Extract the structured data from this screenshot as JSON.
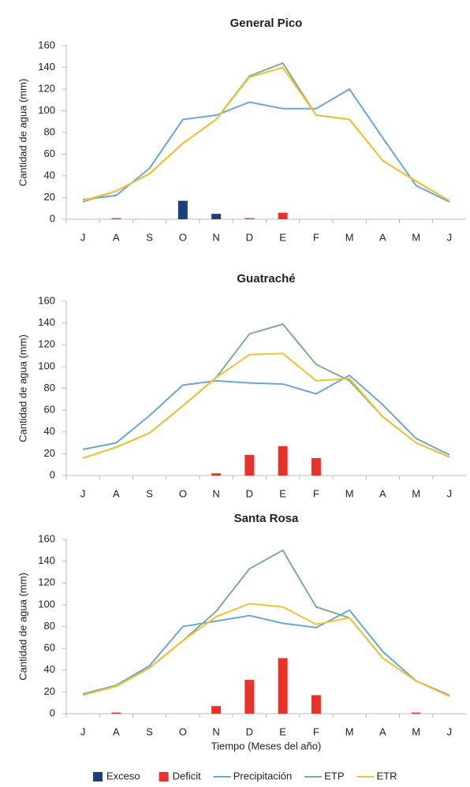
{
  "chart_data": [
    {
      "type": "combo",
      "title": "General Pico",
      "y_label": "Cantidad de agua (mm)",
      "categories": [
        "J",
        "A",
        "S",
        "O",
        "N",
        "D",
        "E",
        "F",
        "M",
        "A",
        "M",
        "J"
      ],
      "ylim": [
        0,
        160
      ],
      "yticks": [
        0,
        20,
        40,
        60,
        80,
        100,
        120,
        140,
        160
      ],
      "grid": false,
      "series": [
        {
          "kind": "bar",
          "color": "#1f3f7a",
          "values": [
            0,
            0,
            0,
            17,
            5,
            0,
            0,
            0,
            0,
            0,
            0,
            0
          ]
        },
        {
          "kind": "bar",
          "color": "#e8322a",
          "values": [
            0,
            1,
            0,
            0,
            0,
            1,
            6,
            0,
            0,
            0,
            0,
            0
          ]
        },
        {
          "kind": "line",
          "color": "#6aa6d8",
          "values": [
            18,
            22,
            47,
            92,
            96,
            108,
            102,
            102,
            120,
            75,
            31,
            16
          ]
        },
        {
          "kind": "line",
          "color": "#7fae8c",
          "values": [
            16,
            26,
            42,
            70,
            92,
            132,
            144,
            96,
            92,
            54,
            35,
            17
          ]
        },
        {
          "kind": "line",
          "color": "#f2c230",
          "values": [
            17,
            26,
            42,
            70,
            92,
            131,
            140,
            96,
            92,
            54,
            35,
            17
          ]
        }
      ]
    },
    {
      "type": "combo",
      "title": "Guatraché",
      "y_label": "Cantidad de agua (mm)",
      "categories": [
        "J",
        "A",
        "S",
        "O",
        "N",
        "D",
        "E",
        "F",
        "M",
        "A",
        "M",
        "J"
      ],
      "ylim": [
        0,
        160
      ],
      "yticks": [
        0,
        20,
        40,
        60,
        80,
        100,
        120,
        140,
        160
      ],
      "grid": false,
      "series": [
        {
          "kind": "bar",
          "color": "#1f3f7a",
          "values": [
            0,
            0,
            0,
            0,
            0,
            0,
            0,
            0,
            0,
            0,
            0,
            0
          ]
        },
        {
          "kind": "bar",
          "color": "#e8322a",
          "values": [
            0,
            0,
            0,
            0,
            2,
            19,
            27,
            16,
            0,
            0,
            0,
            0
          ]
        },
        {
          "kind": "line",
          "color": "#6aa6d8",
          "values": [
            24,
            30,
            55,
            83,
            87,
            85,
            84,
            75,
            92,
            65,
            34,
            19
          ]
        },
        {
          "kind": "line",
          "color": "#7fae8c",
          "values": [
            16,
            26,
            39,
            64,
            90,
            130,
            139,
            102,
            87,
            54,
            30,
            17
          ]
        },
        {
          "kind": "line",
          "color": "#f2c230",
          "values": [
            16,
            26,
            39,
            64,
            90,
            111,
            112,
            87,
            89,
            54,
            30,
            17
          ]
        }
      ]
    },
    {
      "type": "combo",
      "title": "Santa Rosa",
      "y_label": "Cantidad de agua (mm)",
      "x_label": "Tiempo (Meses del año)",
      "categories": [
        "J",
        "A",
        "S",
        "O",
        "N",
        "D",
        "E",
        "F",
        "M",
        "A",
        "M",
        "J"
      ],
      "ylim": [
        0,
        160
      ],
      "yticks": [
        0,
        20,
        40,
        60,
        80,
        100,
        120,
        140,
        160
      ],
      "grid": false,
      "legend": "bottom",
      "series": [
        {
          "kind": "bar",
          "name": "Exceso",
          "color": "#1f3f7a",
          "values": [
            0,
            0,
            0,
            0,
            0,
            0,
            0,
            0,
            0,
            0,
            0,
            0
          ]
        },
        {
          "kind": "bar",
          "name": "Deficit",
          "color": "#e8322a",
          "values": [
            0,
            1,
            0,
            0,
            7,
            31,
            51,
            17,
            0,
            0,
            1,
            0
          ]
        },
        {
          "kind": "line",
          "name": "Precipitación",
          "color": "#6aa6d8",
          "values": [
            18,
            26,
            44,
            80,
            85,
            90,
            83,
            79,
            95,
            57,
            30,
            17
          ]
        },
        {
          "kind": "line",
          "name": "ETP",
          "color": "#7fae8c",
          "values": [
            17,
            26,
            42,
            67,
            94,
            133,
            150,
            98,
            88,
            51,
            30,
            16
          ]
        },
        {
          "kind": "line",
          "name": "ETR",
          "color": "#f2c230",
          "values": [
            17,
            25,
            42,
            67,
            89,
            101,
            98,
            82,
            88,
            51,
            30,
            16
          ]
        }
      ]
    }
  ]
}
